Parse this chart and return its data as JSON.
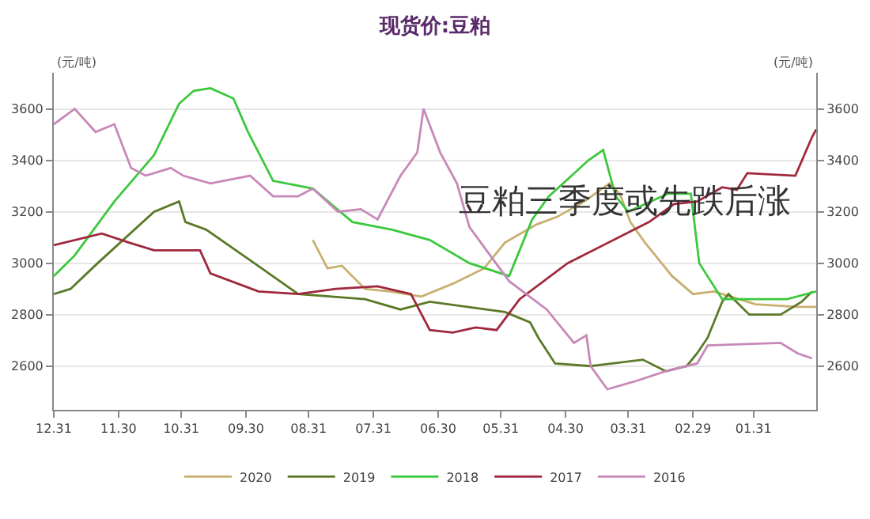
{
  "chart_data": {
    "type": "line",
    "title": "现货价:豆粕",
    "ylabel": "(元/吨)",
    "y2label": "(元/吨)",
    "annotations": [
      "豆粕三季度或先跌后涨"
    ],
    "xlim": [
      "--12-31",
      "--01-01"
    ],
    "xticks": [
      {
        "value": "--12-31",
        "label": "12.31"
      },
      {
        "value": "--11-30",
        "label": "11.30"
      },
      {
        "value": "--10-31",
        "label": "10.31"
      },
      {
        "value": "--09-30",
        "label": "09.30"
      },
      {
        "value": "--08-31",
        "label": "08.31"
      },
      {
        "value": "--07-31",
        "label": "07.31"
      },
      {
        "value": "--06-30",
        "label": "06.30"
      },
      {
        "value": "--05-31",
        "label": "05.31"
      },
      {
        "value": "--04-30",
        "label": "04.30"
      },
      {
        "value": "--03-31",
        "label": "03.31"
      },
      {
        "value": "--02-29",
        "label": "02.29"
      },
      {
        "value": "--01-31",
        "label": "01.31"
      }
    ],
    "ylim": [
      2430,
      3740
    ],
    "yticks": [
      2600,
      2800,
      3000,
      3200,
      3400,
      3600
    ],
    "y2lim": [
      2430,
      3740
    ],
    "y2ticks": [
      2600,
      2800,
      3000,
      3200,
      3400,
      3600
    ],
    "grid": "y",
    "legend": "bottom",
    "marker": "none",
    "line_style": "solid",
    "series": [
      {
        "name": "2020",
        "color": "#c8b070",
        "x": [
          "--08-29",
          "--08-22",
          "--08-15",
          "--08-04",
          "--07-23",
          "--07-08",
          "--06-23",
          "--06-08",
          "--05-29",
          "--05-14",
          "--05-04",
          "--04-21",
          "--04-09",
          "--04-04",
          "--03-30",
          "--03-23",
          "--03-10",
          "--02-29",
          "--02-19",
          "--01-30",
          "--01-10",
          "--01-01"
        ],
        "values": [
          3090,
          2980,
          2990,
          2900,
          2890,
          2870,
          2920,
          2980,
          3080,
          3150,
          3180,
          3240,
          3310,
          3270,
          3160,
          3080,
          2950,
          2880,
          2890,
          2840,
          2830,
          2830
        ]
      },
      {
        "name": "2019",
        "color": "#5a7a28",
        "x": [
          "--12-31",
          "--12-23",
          "--12-10",
          "--11-13",
          "--11-01",
          "--10-29",
          "--10-19",
          "--09-26",
          "--09-05",
          "--08-04",
          "--07-18",
          "--07-04",
          "--05-29",
          "--05-17",
          "--05-13",
          "--05-05",
          "--04-18",
          "--03-24",
          "--03-13",
          "--03-03",
          "--02-27",
          "--02-22",
          "--02-15",
          "--02-12",
          "--02-02",
          "--01-18",
          "--01-08",
          "--01-03"
        ],
        "values": [
          2880,
          2900,
          3000,
          3200,
          3240,
          3160,
          3130,
          3000,
          2880,
          2860,
          2820,
          2850,
          2810,
          2770,
          2710,
          2610,
          2600,
          2625,
          2580,
          2600,
          2650,
          2710,
          2850,
          2880,
          2800,
          2800,
          2850,
          2890
        ]
      },
      {
        "name": "2018",
        "color": "#3cc83c",
        "x": [
          "--12-31",
          "--12-21",
          "--12-02",
          "--11-13",
          "--11-01",
          "--10-25",
          "--10-17",
          "--10-06",
          "--09-29",
          "--09-17",
          "--08-29",
          "--08-10",
          "--07-22",
          "--07-04",
          "--06-15",
          "--05-27",
          "--05-16",
          "--05-08",
          "--04-19",
          "--04-12",
          "--04-06",
          "--03-31",
          "--03-12",
          "--03-01",
          "--02-26",
          "--02-15",
          "--01-15",
          "--01-01"
        ],
        "values": [
          2950,
          3030,
          3240,
          3420,
          3620,
          3670,
          3680,
          3640,
          3510,
          3320,
          3290,
          3160,
          3130,
          3090,
          3000,
          2950,
          3170,
          3260,
          3400,
          3440,
          3260,
          3200,
          3270,
          3270,
          3000,
          2860,
          2860,
          2890
        ]
      },
      {
        "name": "2017",
        "color": "#a0283c",
        "x": [
          "--12-31",
          "--12-08",
          "--11-25",
          "--11-13",
          "--10-22",
          "--10-17",
          "--09-24",
          "--09-05",
          "--08-18",
          "--07-29",
          "--07-13",
          "--07-04",
          "--06-23",
          "--06-12",
          "--06-02",
          "--05-22",
          "--04-29",
          "--03-21",
          "--03-09",
          "--02-27",
          "--02-15",
          "--02-08",
          "--02-03",
          "--01-11",
          "--01-03",
          "--01-01"
        ],
        "values": [
          3070,
          3115,
          3080,
          3050,
          3050,
          2960,
          2890,
          2880,
          2900,
          2910,
          2880,
          2740,
          2730,
          2750,
          2740,
          2860,
          3000,
          3160,
          3230,
          3240,
          3295,
          3285,
          3350,
          3340,
          3490,
          3520
        ]
      },
      {
        "name": "2016",
        "color": "#c888b8",
        "x": [
          "--12-31",
          "--12-21",
          "--12-11",
          "--12-02",
          "--11-24",
          "--11-17",
          "--11-05",
          "--10-30",
          "--10-17",
          "--09-28",
          "--09-17",
          "--09-05",
          "--08-29",
          "--08-17",
          "--08-06",
          "--07-29",
          "--07-18",
          "--07-10",
          "--07-07",
          "--06-29",
          "--06-21",
          "--06-15",
          "--05-27",
          "--05-09",
          "--04-26",
          "--04-20",
          "--04-18",
          "--04-10",
          "--03-28",
          "--03-13",
          "--02-27",
          "--02-22",
          "--01-18",
          "--01-10",
          "--01-03"
        ],
        "values": [
          3540,
          3600,
          3510,
          3540,
          3370,
          3340,
          3370,
          3340,
          3310,
          3340,
          3260,
          3260,
          3290,
          3200,
          3210,
          3170,
          3340,
          3430,
          3600,
          3430,
          3310,
          3140,
          2930,
          2820,
          2690,
          2720,
          2600,
          2510,
          2540,
          2580,
          2610,
          2680,
          2690,
          2650,
          2630
        ]
      }
    ]
  }
}
